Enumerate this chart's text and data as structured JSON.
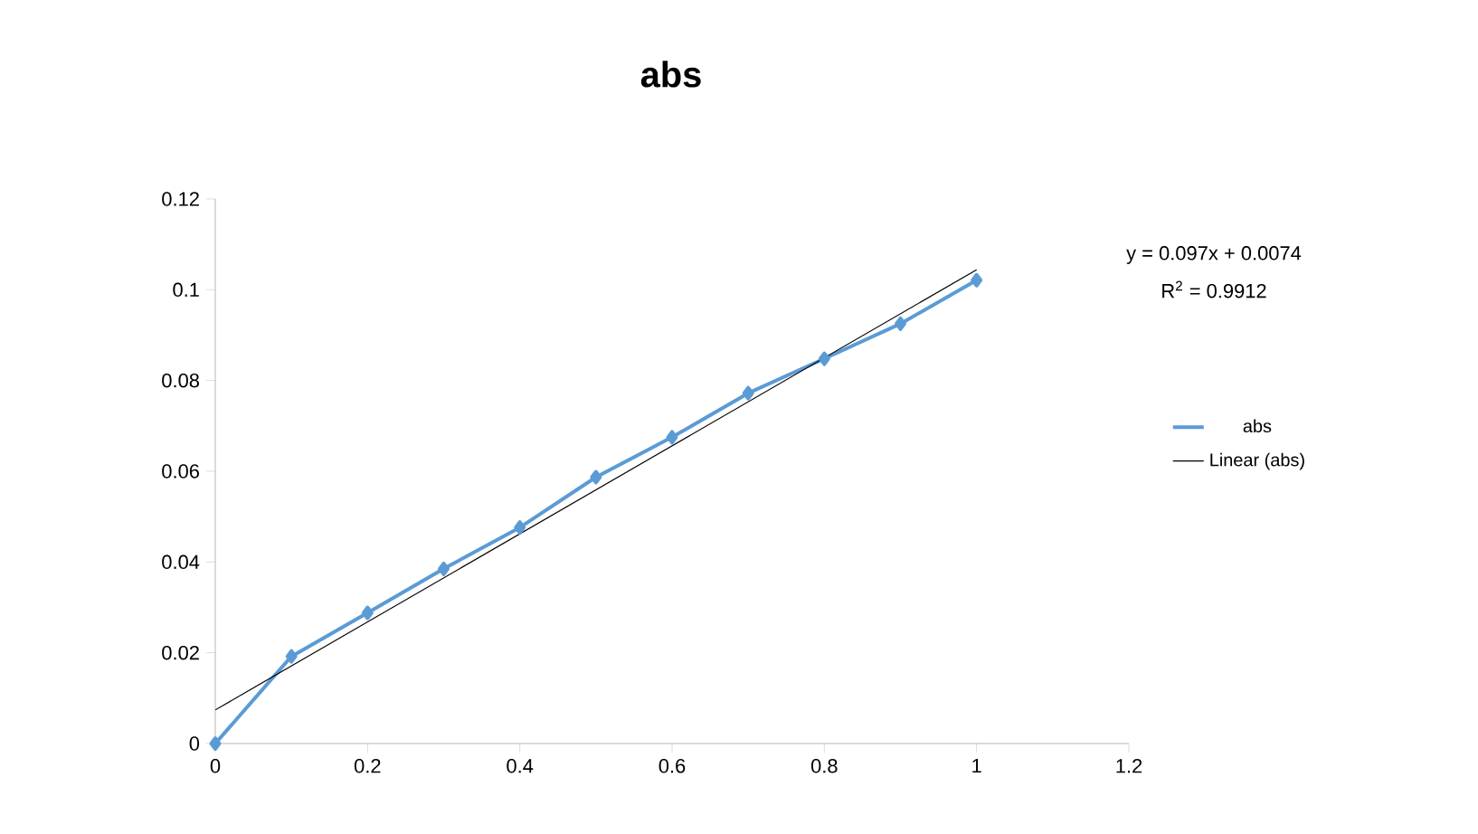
{
  "chart_data": {
    "type": "line",
    "title": "abs",
    "x": [
      0,
      0.1,
      0.2,
      0.3,
      0.4,
      0.5,
      0.6,
      0.7,
      0.8,
      0.9,
      1
    ],
    "series": [
      {
        "name": "abs",
        "color": "#5b9bd5",
        "marker": "diamond",
        "values": [
          0,
          0.0192,
          0.0288,
          0.0385,
          0.0476,
          0.0587,
          0.0675,
          0.0772,
          0.0848,
          0.0925,
          0.1021
        ]
      },
      {
        "name": "Linear (abs)",
        "type": "line",
        "color": "#000000",
        "marker": "none",
        "x": [
          0,
          1
        ],
        "values": [
          0.0074,
          0.1044
        ]
      }
    ],
    "xlim": [
      0,
      1.2
    ],
    "xticks": [
      0,
      0.2,
      0.4,
      0.6,
      0.8,
      1,
      1.2
    ],
    "ylim": [
      0,
      0.12
    ],
    "yticks": [
      0,
      0.02,
      0.04,
      0.06,
      0.08,
      0.1,
      0.12
    ],
    "annotations": [
      "y = 0.097x + 0.0074",
      "R$^{2}$ = 0.9912"
    ],
    "legend": "right",
    "grid": false
  }
}
